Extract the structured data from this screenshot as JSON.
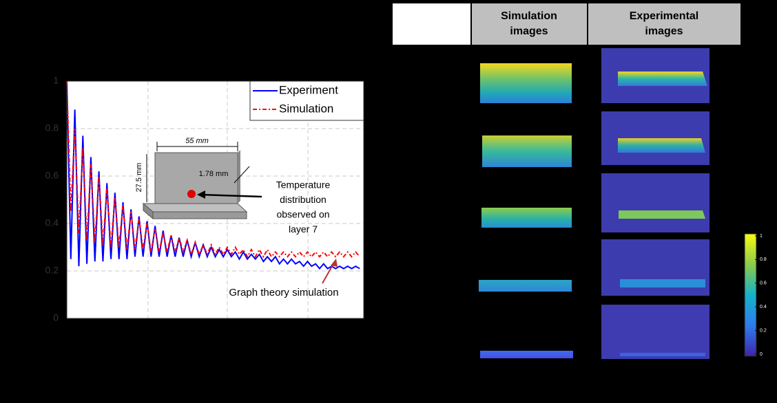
{
  "chart_data": {
    "type": "line",
    "x": [
      0,
      0.5,
      1,
      1.5,
      2,
      2.5,
      3,
      3.5,
      4,
      4.5,
      5,
      5.5,
      6,
      6.5,
      7,
      7.5,
      8,
      8.5,
      9,
      9.5,
      10,
      10.5,
      11,
      11.5,
      12,
      12.5,
      13,
      13.5,
      14,
      14.5,
      15,
      15.5,
      16,
      16.5,
      17,
      17.5,
      18,
      18.5,
      19,
      19.5,
      20,
      20.5,
      21,
      21.5,
      22,
      22.5,
      23,
      23.5,
      24,
      24.5,
      25,
      25.5,
      26,
      26.5,
      27,
      27.5,
      28,
      28.5,
      29,
      29.5,
      30,
      30.5,
      31,
      31.5,
      32,
      32.5,
      33,
      33.5,
      34,
      34.5,
      35,
      35.5,
      36,
      36.5
    ],
    "xlim": [
      0,
      37
    ],
    "ylim": [
      0,
      1
    ],
    "yticks": [
      0,
      0.2,
      0.4,
      0.6,
      0.8,
      1
    ],
    "grid": true,
    "legend": "top-right",
    "series": [
      {
        "name": "Experiment",
        "color": "#0000ff",
        "line_style": "solid",
        "values": [
          1.0,
          0.25,
          0.88,
          0.22,
          0.77,
          0.23,
          0.68,
          0.24,
          0.62,
          0.24,
          0.57,
          0.25,
          0.53,
          0.25,
          0.49,
          0.25,
          0.46,
          0.26,
          0.43,
          0.26,
          0.41,
          0.26,
          0.39,
          0.26,
          0.37,
          0.26,
          0.35,
          0.26,
          0.34,
          0.26,
          0.33,
          0.26,
          0.32,
          0.26,
          0.31,
          0.26,
          0.3,
          0.26,
          0.29,
          0.26,
          0.29,
          0.26,
          0.28,
          0.25,
          0.28,
          0.25,
          0.27,
          0.25,
          0.27,
          0.24,
          0.26,
          0.24,
          0.26,
          0.23,
          0.25,
          0.23,
          0.25,
          0.23,
          0.24,
          0.22,
          0.24,
          0.22,
          0.23,
          0.21,
          0.23,
          0.21,
          0.22,
          0.21,
          0.22,
          0.21,
          0.22,
          0.21,
          0.22,
          0.21
        ]
      },
      {
        "name": "Simulation",
        "color": "#ff0000",
        "line_style": "dashdot",
        "values": [
          1.0,
          0.45,
          0.8,
          0.36,
          0.72,
          0.33,
          0.65,
          0.32,
          0.6,
          0.31,
          0.55,
          0.3,
          0.51,
          0.3,
          0.48,
          0.29,
          0.45,
          0.29,
          0.42,
          0.29,
          0.4,
          0.28,
          0.38,
          0.28,
          0.36,
          0.28,
          0.35,
          0.28,
          0.34,
          0.28,
          0.33,
          0.27,
          0.32,
          0.27,
          0.31,
          0.27,
          0.31,
          0.27,
          0.3,
          0.27,
          0.3,
          0.27,
          0.3,
          0.27,
          0.29,
          0.26,
          0.29,
          0.26,
          0.29,
          0.26,
          0.29,
          0.26,
          0.28,
          0.26,
          0.28,
          0.26,
          0.28,
          0.26,
          0.28,
          0.26,
          0.28,
          0.26,
          0.28,
          0.26,
          0.28,
          0.26,
          0.28,
          0.26,
          0.28,
          0.26,
          0.28,
          0.26,
          0.28,
          0.26
        ]
      }
    ],
    "annotations": {
      "width": "55 mm",
      "height": "27.5 mm",
      "thickness": "1.78 mm",
      "temperature": [
        "Temperature",
        "distribution",
        "observed on",
        "layer 7"
      ],
      "graph_theory": "Graph theory simulation"
    }
  },
  "panel": {
    "headers": [
      "Simulation images",
      "Experimental images"
    ],
    "colorbar": {
      "ticks": [
        0,
        0.2,
        0.4,
        0.6,
        0.8,
        1
      ],
      "lim": [
        0,
        1
      ]
    }
  }
}
